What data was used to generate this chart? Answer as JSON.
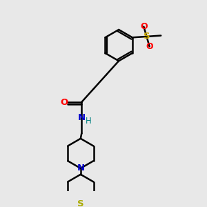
{
  "background_color": "#e8e8e8",
  "atom_colors": {
    "O": "#ff0000",
    "N": "#0000cc",
    "S_sulfonyl": "#ccaa00",
    "S_thio": "#aaaa00",
    "C": "#000000",
    "H": "#008080"
  },
  "bond_color": "#000000",
  "bond_lw": 1.8,
  "figure_size": [
    3.0,
    3.0
  ],
  "dpi": 100
}
